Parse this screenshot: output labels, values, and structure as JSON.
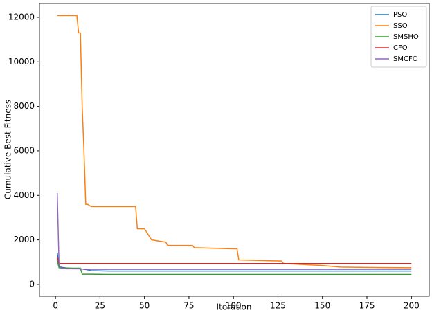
{
  "chart_data": {
    "type": "line",
    "xlabel": "Iteration",
    "ylabel": "Cumulative Best Fitness",
    "x": [
      1,
      2,
      3,
      4,
      6,
      8,
      10,
      12,
      13,
      14,
      15,
      16,
      17,
      18,
      20,
      30,
      45,
      46,
      50,
      54,
      58,
      62,
      63,
      77,
      78,
      100,
      102,
      103,
      127,
      128,
      130,
      150,
      160,
      180,
      200
    ],
    "series": [
      {
        "name": "PSO",
        "color": "#1f77b4",
        "values": [
          1420,
          800,
          780,
          760,
          740,
          730,
          720,
          700,
          700,
          700,
          690,
          680,
          670,
          660,
          620,
          600,
          600,
          600,
          600,
          600,
          600,
          600,
          600,
          600,
          600,
          600,
          600,
          600,
          600,
          600,
          600,
          600,
          600,
          600,
          600
        ]
      },
      {
        "name": "SSO",
        "color": "#ff7f0e",
        "values": [
          12080,
          12080,
          12080,
          12080,
          12080,
          12080,
          12080,
          12080,
          11300,
          11300,
          8000,
          6000,
          3600,
          3600,
          3500,
          3500,
          3500,
          2500,
          2500,
          2000,
          1950,
          1900,
          1750,
          1750,
          1650,
          1600,
          1600,
          1100,
          1050,
          950,
          930,
          850,
          780,
          760,
          750
        ]
      },
      {
        "name": "SMSHO",
        "color": "#2ca02c",
        "values": [
          1050,
          750,
          740,
          730,
          730,
          730,
          730,
          730,
          730,
          730,
          460,
          460,
          460,
          460,
          460,
          450,
          450,
          450,
          450,
          450,
          450,
          450,
          450,
          450,
          450,
          450,
          450,
          450,
          450,
          450,
          450,
          450,
          450,
          450,
          450
        ]
      },
      {
        "name": "CFO",
        "color": "#d62728",
        "values": [
          1200,
          940,
          940,
          940,
          940,
          940,
          940,
          940,
          940,
          940,
          940,
          940,
          940,
          940,
          940,
          940,
          940,
          940,
          940,
          940,
          940,
          940,
          940,
          940,
          940,
          940,
          940,
          940,
          940,
          940,
          940,
          940,
          940,
          940,
          940
        ]
      },
      {
        "name": "SMCFO",
        "color": "#9467bd",
        "values": [
          4100,
          900,
          750,
          720,
          700,
          700,
          700,
          700,
          700,
          700,
          690,
          690,
          690,
          690,
          680,
          680,
          680,
          680,
          680,
          680,
          680,
          680,
          680,
          680,
          680,
          680,
          680,
          680,
          680,
          680,
          680,
          680,
          680,
          680,
          680
        ]
      }
    ],
    "xlim": [
      -9,
      210
    ],
    "ylim": [
      -530,
      12620
    ],
    "xticks": [
      0,
      25,
      50,
      75,
      100,
      125,
      150,
      175,
      200
    ],
    "yticks": [
      0,
      2000,
      4000,
      6000,
      8000,
      10000,
      12000
    ],
    "legend": "upper right"
  }
}
